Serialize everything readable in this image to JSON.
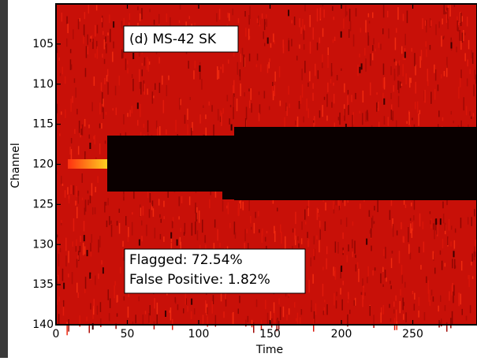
{
  "chart_data": {
    "type": "heatmap",
    "x_label": "Time",
    "y_label": "Channel",
    "xlim": [
      0,
      295
    ],
    "xticks": [
      0,
      50,
      100,
      150,
      200,
      250
    ],
    "ylim": [
      100,
      140
    ],
    "yticks": [
      105,
      110,
      115,
      120,
      125,
      130,
      135,
      140
    ],
    "annotations": [
      "(d) MS-42 SK",
      "Flagged: 72.54%",
      "False Positive: 1.82%"
    ]
  }
}
